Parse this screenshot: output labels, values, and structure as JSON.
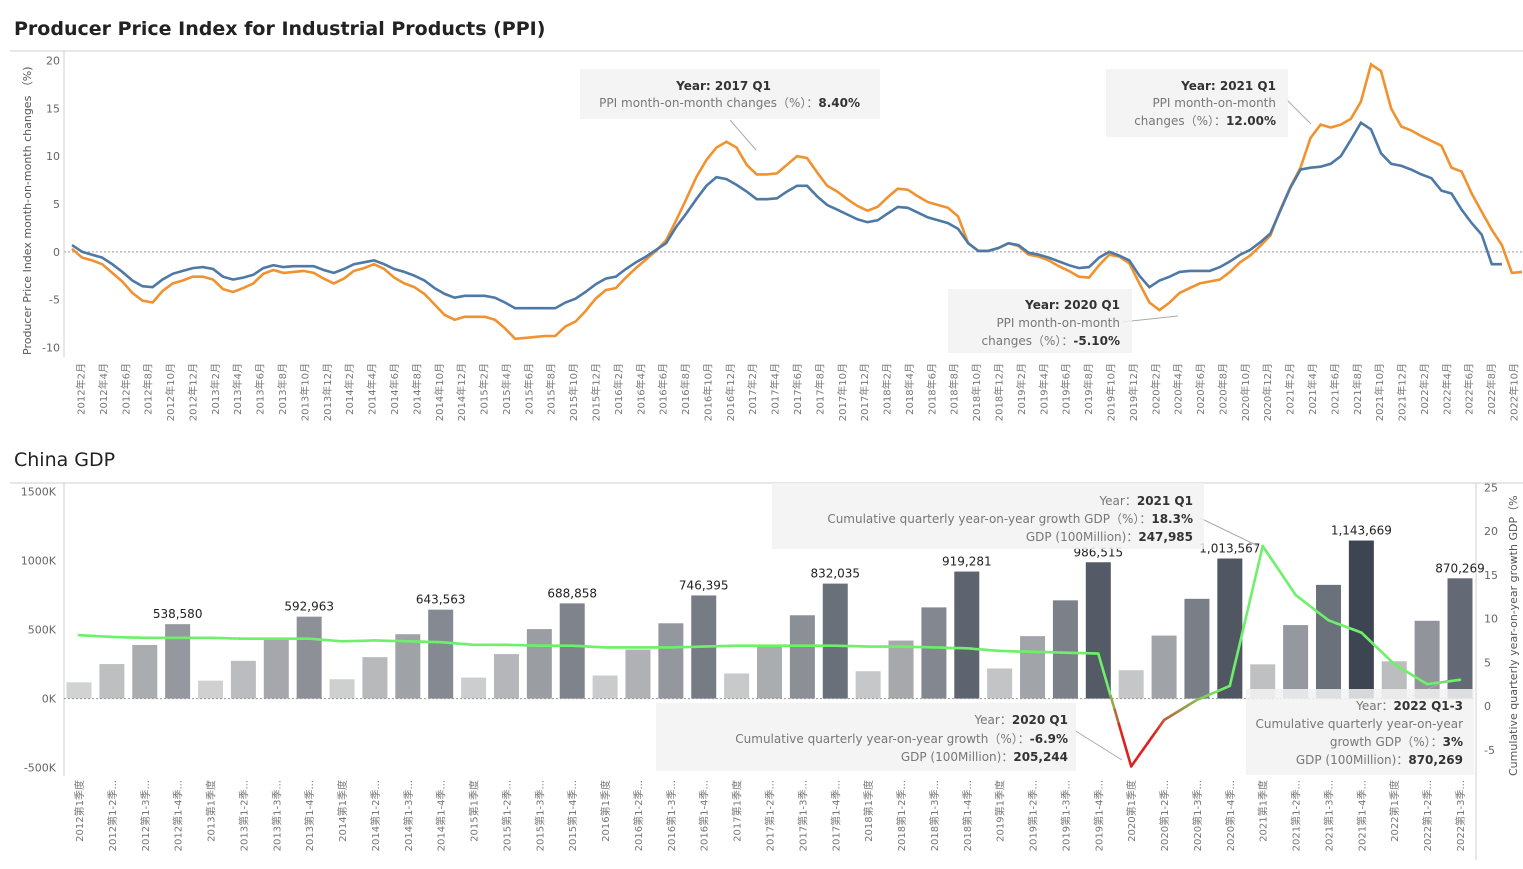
{
  "colors": {
    "ppi_mom_line": "#f0922f",
    "ppi_index_line": "#4e79a7",
    "gdp_growth_line": "#6ef06a",
    "gdp_growth_negative": "#e02020",
    "bar_light": "#d4d4d4",
    "bar_dark": "#3c4452"
  },
  "chart_data": [
    {
      "type": "line",
      "title": "Producer Price Index for Industrial Products (PPI)",
      "ylabel": "Producer Price Index month-on-month changes （%)",
      "ylim": [
        -11,
        21
      ],
      "yticks": [
        20,
        15,
        10,
        5,
        0,
        -5,
        -10
      ],
      "x_tick_labels": [
        "2012年2月",
        "2012年4月",
        "2012年6月",
        "2012年8月",
        "2012年10月",
        "2012年12月",
        "2013年2月",
        "2013年4月",
        "2013年6月",
        "2013年8月",
        "2013年10月",
        "2013年12月",
        "2014年2月",
        "2014年4月",
        "2014年6月",
        "2014年8月",
        "2014年10月",
        "2014年12月",
        "2015年2月",
        "2015年4月",
        "2015年6月",
        "2015年8月",
        "2015年10月",
        "2015年12月",
        "2016年2月",
        "2016年4月",
        "2016年6月",
        "2016年8月",
        "2016年10月",
        "2016年12月",
        "2017年2月",
        "2017年4月",
        "2017年6月",
        "2017年8月",
        "2017年10月",
        "2017年12月",
        "2018年2月",
        "2018年4月",
        "2018年6月",
        "2018年8月",
        "2018年10月",
        "2018年12月",
        "2019年2月",
        "2019年4月",
        "2019年6月",
        "2019年8月",
        "2019年10月",
        "2019年12月",
        "2020年2月",
        "2020年4月",
        "2020年6月",
        "2020年8月",
        "2020年10月",
        "2020年12月",
        "2021年2月",
        "2021年4月",
        "2021年6月",
        "2021年8月",
        "2021年10月",
        "2021年12月",
        "2022年2月",
        "2022年4月",
        "2022年6月",
        "2022年8月",
        "2022年10月"
      ],
      "series": [
        {
          "color_key": "ppi_mom_line",
          "values": [
            0.3,
            -0.6,
            -0.9,
            -1.3,
            -2.2,
            -3.1,
            -4.3,
            -5.1,
            -5.3,
            -4.1,
            -3.3,
            -3.0,
            -2.6,
            -2.6,
            -2.9,
            -3.9,
            -4.2,
            -3.8,
            -3.3,
            -2.3,
            -1.9,
            -2.2,
            -2.1,
            -2.0,
            -2.2,
            -2.8,
            -3.3,
            -2.8,
            -2.0,
            -1.7,
            -1.3,
            -1.8,
            -2.7,
            -3.3,
            -3.7,
            -4.4,
            -5.5,
            -6.6,
            -7.1,
            -6.8,
            -6.8,
            -6.8,
            -7.1,
            -8.0,
            -9.1,
            -9.0,
            -8.9,
            -8.8,
            -8.8,
            -7.8,
            -7.3,
            -6.2,
            -4.9,
            -4.0,
            -3.8,
            -2.7,
            -1.7,
            -0.8,
            0.1,
            1.2,
            3.3,
            5.5,
            7.8,
            9.6,
            10.9,
            11.5,
            10.9,
            9.1,
            8.1,
            8.1,
            8.2,
            9.1,
            10.0,
            9.8,
            8.3,
            6.9,
            6.3,
            5.5,
            4.8,
            4.3,
            4.7,
            5.7,
            6.6,
            6.5,
            5.8,
            5.2,
            4.9,
            4.6,
            3.7,
            0.9,
            0.1,
            0.1,
            0.4,
            0.9,
            0.6,
            -0.3,
            -0.5,
            -0.9,
            -1.5,
            -2.0,
            -2.6,
            -2.7,
            -1.4,
            -0.3,
            -0.5,
            -1.2,
            -3.3,
            -5.3,
            -6.1,
            -5.3,
            -4.3,
            -3.8,
            -3.3,
            -3.1,
            -2.9,
            -2.1,
            -1.1,
            -0.4,
            0.6,
            1.7,
            4.4,
            6.8,
            8.8,
            11.9,
            13.3,
            13.0,
            13.3,
            13.9,
            15.7,
            19.6,
            18.9,
            15.0,
            13.1,
            12.7,
            12.1,
            11.6,
            11.1,
            8.8,
            8.4,
            6.1,
            4.2,
            2.3,
            0.7,
            -2.2,
            -2.1
          ],
          "annotations": [
            {
              "header_label": "Year: ",
              "period": "2017 Q1",
              "measure_label": "PPI month-on-month changes（%）：",
              "value": "8.40%"
            },
            {
              "header_label": "Year: ",
              "period": "2021 Q1",
              "measure_label_1": "PPI month-on-month",
              "measure_label_2": "changes（%）：",
              "value": "12.00%"
            },
            {
              "header_label": "Year: ",
              "period": "2020 Q1",
              "measure_label_1": "PPI month-on-month",
              "measure_label_2": "changes（%）：",
              "value": "-5.10%"
            }
          ]
        },
        {
          "color_key": "ppi_index_line",
          "values": [
            0.7,
            0.0,
            -0.3,
            -0.6,
            -1.3,
            -2.1,
            -3.0,
            -3.6,
            -3.7,
            -2.9,
            -2.3,
            -2.0,
            -1.7,
            -1.6,
            -1.8,
            -2.6,
            -2.9,
            -2.7,
            -2.4,
            -1.7,
            -1.4,
            -1.6,
            -1.5,
            -1.5,
            -1.5,
            -1.9,
            -2.2,
            -1.8,
            -1.3,
            -1.1,
            -0.9,
            -1.3,
            -1.8,
            -2.1,
            -2.5,
            -3.0,
            -3.8,
            -4.4,
            -4.8,
            -4.6,
            -4.6,
            -4.6,
            -4.8,
            -5.3,
            -5.9,
            -5.9,
            -5.9,
            -5.9,
            -5.9,
            -5.3,
            -4.9,
            -4.2,
            -3.4,
            -2.8,
            -2.6,
            -1.8,
            -1.1,
            -0.5,
            0.2,
            0.9,
            2.6,
            4.0,
            5.5,
            6.9,
            7.8,
            7.6,
            7.0,
            6.3,
            5.5,
            5.5,
            5.6,
            6.3,
            6.9,
            6.9,
            5.8,
            4.9,
            4.4,
            3.9,
            3.4,
            3.1,
            3.3,
            4.0,
            4.7,
            4.6,
            4.1,
            3.6,
            3.3,
            3.0,
            2.4,
            0.9,
            0.1,
            0.1,
            0.4,
            0.9,
            0.7,
            -0.1,
            -0.3,
            -0.6,
            -1.0,
            -1.4,
            -1.7,
            -1.6,
            -0.6,
            0.0,
            -0.4,
            -0.9,
            -2.5,
            -3.7,
            -3.0,
            -2.6,
            -2.1,
            -2.0,
            -2.0,
            -2.0,
            -1.6,
            -1.0,
            -0.3,
            0.2,
            1.0,
            1.9,
            4.3,
            6.7,
            8.6,
            8.8,
            8.9,
            9.2,
            10.0,
            11.7,
            13.5,
            12.8,
            10.3,
            9.2,
            9.0,
            8.6,
            8.1,
            7.7,
            6.4,
            6.1,
            4.4,
            3.0,
            1.8,
            -1.3,
            -1.3
          ]
        }
      ],
      "grid": "horizontal",
      "legend": "none"
    },
    {
      "type": "bar",
      "title": "China GDP",
      "ylabel": "",
      "y2label": "Cumulative quarterly year-on-year growth GDP（%",
      "ylim": [
        -560000,
        1560000
      ],
      "y2lim": [
        -8,
        25.5
      ],
      "yticks": [
        1500000,
        1000000,
        500000,
        0,
        -500000
      ],
      "yticklabels": [
        "1500K",
        "1000K",
        "500K",
        "0K",
        "-500K"
      ],
      "y2ticks": [
        25,
        20,
        15,
        10,
        5,
        0,
        -5
      ],
      "categories": [
        "2012第1季度",
        "2012第1-2季...",
        "2012第1-3季...",
        "2012第1-4季...",
        "2013第1季度",
        "2013第1-2季...",
        "2013第1-3季...",
        "2013第1-4季...",
        "2014第1季度",
        "2014第1-2季...",
        "2014第1-3季...",
        "2014第1-4季...",
        "2015第1季度",
        "2015第1-2季...",
        "2015第1-3季...",
        "2015第1-4季...",
        "2016第1季度",
        "2016第1-2季...",
        "2016第1-3季...",
        "2016第1-4季...",
        "2017第1季度",
        "2017第1-2季...",
        "2017第1-3季...",
        "2017第1-4季...",
        "2018第1季度",
        "2018第1-2季...",
        "2018第1-3季...",
        "2018第1-4季...",
        "2019第1季度",
        "2019第1-2季...",
        "2019第1-3季...",
        "2019第1-4季...",
        "2020第1季度",
        "2020第1-2季...",
        "2020第1-3季...",
        "2020第1-4季...",
        "2021第1季度",
        "2021第1-2季...",
        "2021第1-3季...",
        "2021第1-4季...",
        "2022第1季度",
        "2022第1-2季...",
        "2022第1-3季..."
      ],
      "series": [
        {
          "name": "GDP (100Million)",
          "values": [
            117593,
            250000,
            388000,
            538580,
            130000,
            273000,
            425000,
            592963,
            140000,
            300000,
            466000,
            643563,
            152000,
            322000,
            503000,
            688858,
            167000,
            355000,
            545000,
            746395,
            182000,
            387000,
            603000,
            832035,
            198000,
            420000,
            660000,
            919281,
            218000,
            452000,
            711000,
            986515,
            205244,
            456000,
            722000,
            1013567,
            247985,
            532000,
            823000,
            1143669,
            270000,
            563000,
            870269
          ],
          "labels": [
            "",
            "",
            "",
            "538,580",
            "",
            "",
            "",
            "592,963",
            "",
            "",
            "",
            "643,563",
            "",
            "",
            "",
            "688,858",
            "",
            "",
            "",
            "746,395",
            "",
            "",
            "",
            "832,035",
            "",
            "",
            "",
            "919,281",
            "",
            "",
            "",
            "986,515",
            "",
            "",
            "",
            "1,013,567",
            "",
            "",
            "",
            "1,143,669",
            "",
            "",
            "870,269"
          ]
        },
        {
          "name": "Cumulative quarterly year-on-year growth GDP（%）",
          "values": [
            8.1,
            7.9,
            7.8,
            7.8,
            7.8,
            7.7,
            7.7,
            7.7,
            7.4,
            7.5,
            7.4,
            7.3,
            7.0,
            7.0,
            6.9,
            6.9,
            6.7,
            6.7,
            6.7,
            6.8,
            6.9,
            6.9,
            6.9,
            6.9,
            6.8,
            6.8,
            6.7,
            6.6,
            6.3,
            6.2,
            6.1,
            6.0,
            -6.9,
            -1.6,
            0.7,
            2.3,
            18.3,
            12.7,
            9.8,
            8.4,
            4.8,
            2.5,
            3.0
          ]
        }
      ],
      "annotations": [
        {
          "header_label": "Year：",
          "period": "2021 Q1",
          "growth_label": "Cumulative quarterly year-on-year growth GDP（%）：",
          "growth": "18.3%",
          "gdp_label": "GDP (100Million)：",
          "gdp": "247,985"
        },
        {
          "header_label": "Year：",
          "period": "2020 Q1",
          "growth_label": "Cumulative quarterly year-on-year growth（%）：",
          "growth": "-6.9%",
          "gdp_label": "GDP (100Million)：",
          "gdp": "205,244"
        },
        {
          "header_label": "Year：",
          "period": "2022 Q1-3",
          "growth_label_1": "Cumulative quarterly year-on-year",
          "growth_label_2": "growth GDP（%）：",
          "growth": "3%",
          "gdp_label": "GDP (100Million)：",
          "gdp": "870,269"
        }
      ],
      "grid": "horizontal",
      "legend": "none"
    }
  ]
}
